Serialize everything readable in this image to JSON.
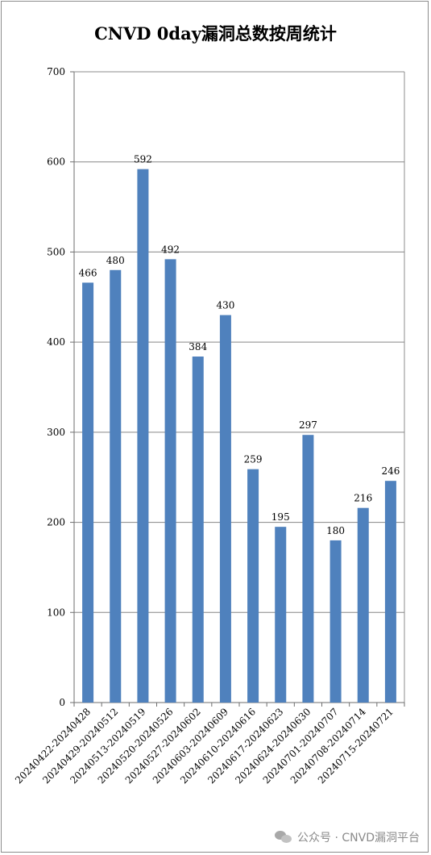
{
  "chart_data": {
    "type": "bar",
    "title": "CNVD 0day漏洞总数按周统计",
    "categories": [
      "20240422-20240428",
      "20240429-20240512",
      "20240513-20240519",
      "20240520-20240526",
      "20240527-20240602",
      "20240603-20240609",
      "20240610-20240616",
      "20240617-20240623",
      "20240624-20240630",
      "20240701-20240707",
      "20240708-20240714",
      "20240715-20240721"
    ],
    "values": [
      466,
      480,
      592,
      492,
      384,
      430,
      259,
      195,
      297,
      180,
      216,
      246
    ],
    "ylim": [
      0,
      700
    ],
    "yticks": [
      "0",
      "100",
      "200",
      "300",
      "400",
      "500",
      "600",
      "700"
    ],
    "grid": true,
    "bar_color": "#4f81bd",
    "grid_color": "#868686"
  },
  "watermark": {
    "text": "公众号 · CNVD漏洞平台",
    "icon": "wechat-icon"
  }
}
